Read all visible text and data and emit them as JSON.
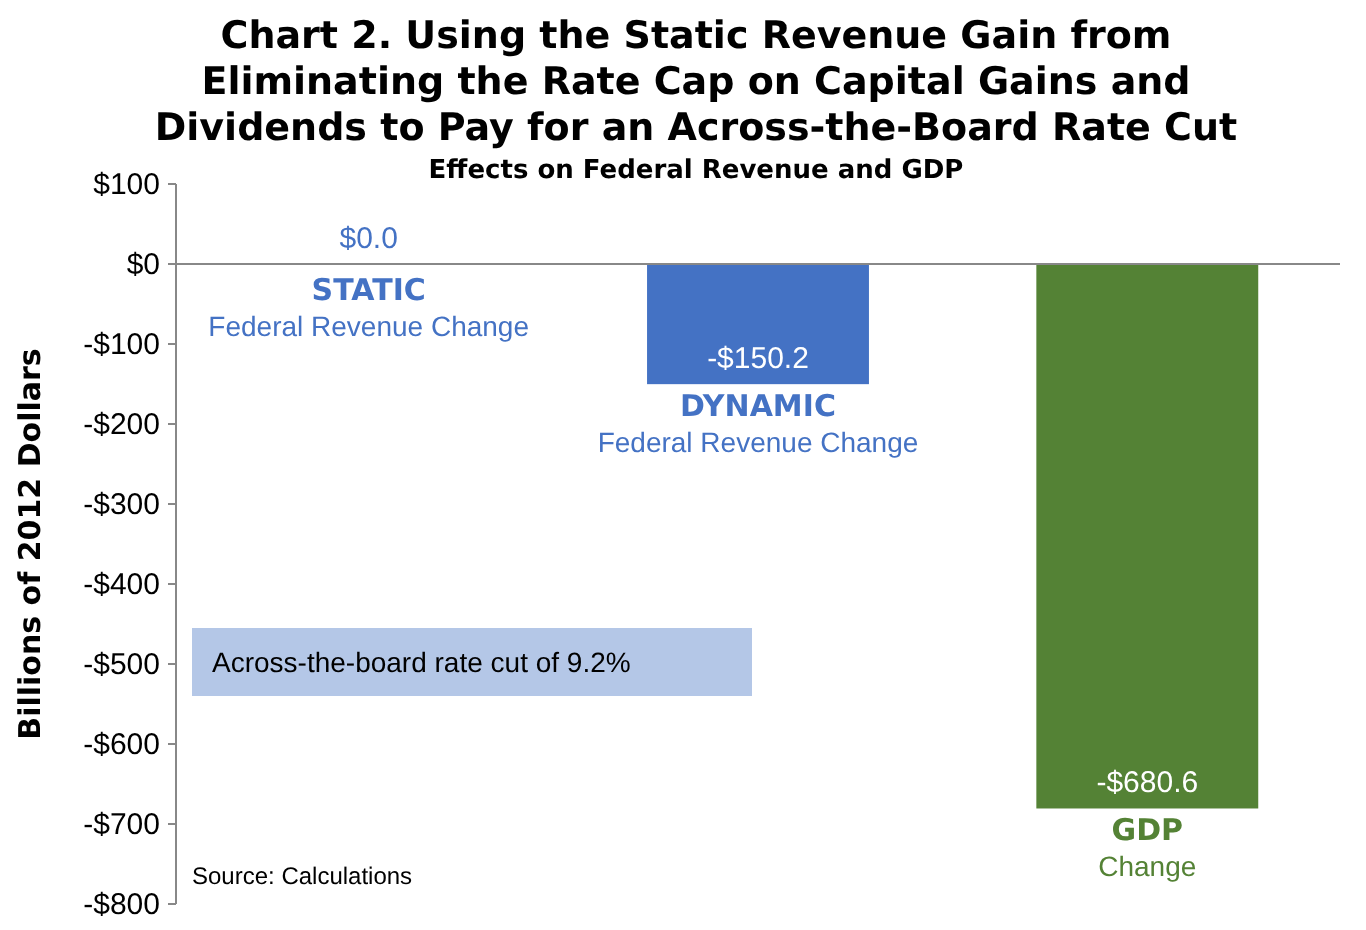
{
  "chart_data": {
    "type": "bar",
    "title": "Chart 2. Using the Static Revenue Gain from Eliminating the Rate Cap on Capital Gains and Dividends to Pay for an Across-the-Board Rate Cut",
    "subtitle": "Effects on Federal Revenue and GDP",
    "ylabel": "Billions of 2012 Dollars",
    "categories": [
      "STATIC\nFederal Revenue Change",
      "DYNAMIC\nFederal Revenue Change",
      "GDP\nChange"
    ],
    "values": [
      0.0,
      -150.2,
      -680.6
    ],
    "colors": [
      "#4472c4",
      "#4472c4",
      "#548235"
    ],
    "value_labels": [
      "$0.0",
      "-$150.2",
      "-$680.6"
    ],
    "ylim": [
      -800,
      100
    ],
    "yticks": [
      {
        "value": 100,
        "label": "$100"
      },
      {
        "value": 0,
        "label": "$0"
      },
      {
        "value": -100,
        "label": "-$100"
      },
      {
        "value": -200,
        "label": "-$200"
      },
      {
        "value": -300,
        "label": "-$300"
      },
      {
        "value": -400,
        "label": "-$400"
      },
      {
        "value": -500,
        "label": "-$500"
      },
      {
        "value": -600,
        "label": "-$600"
      },
      {
        "value": -700,
        "label": "-$700"
      },
      {
        "value": -800,
        "label": "-$800"
      }
    ],
    "annotations": [
      "Across-the-board rate cut of 9.2%",
      "Source: Calculations"
    ],
    "ref_lines": [
      {
        "axis": "y",
        "value": 0,
        "color": "#888888"
      }
    ]
  }
}
